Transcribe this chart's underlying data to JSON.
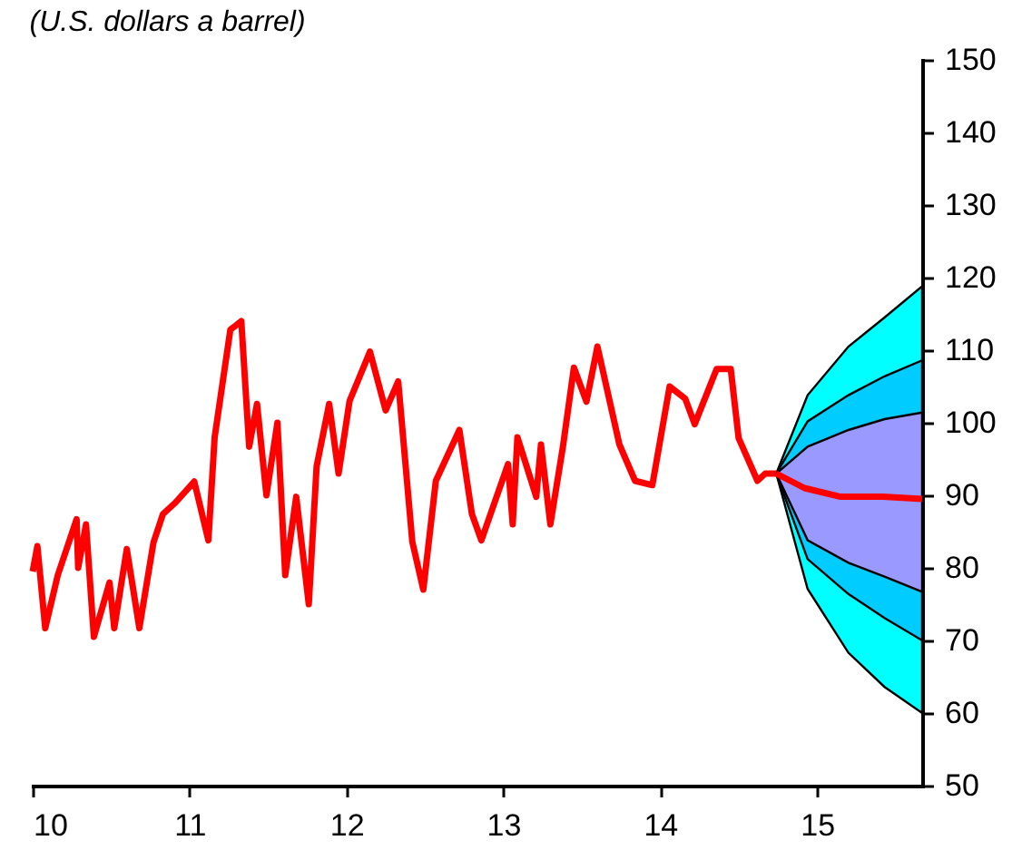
{
  "chart_data": {
    "type": "line",
    "title": "(U.S. dollars a barrel)",
    "xlim": [
      2010,
      2015.67
    ],
    "xticks": [
      {
        "value": 2010,
        "label": "10"
      },
      {
        "value": 2011,
        "label": "11"
      },
      {
        "value": 2012,
        "label": "12"
      },
      {
        "value": 2013,
        "label": "13"
      },
      {
        "value": 2014,
        "label": "14"
      },
      {
        "value": 2015,
        "label": "15"
      }
    ],
    "ylim": [
      50,
      150
    ],
    "yticks": [
      50,
      60,
      70,
      80,
      90,
      100,
      110,
      120,
      130,
      140,
      150
    ],
    "grid": false,
    "series": [
      {
        "type": "area",
        "color": "#00ffff",
        "x": [
          2014.74,
          2014.94,
          2015.2,
          2015.43,
          2015.67
        ],
        "values": [
          null,
          null,
          null,
          null,
          null
        ],
        "lower": [
          93,
          77.1,
          68.3,
          63.6,
          60
        ],
        "upper": [
          93,
          103.8,
          110.5,
          114.5,
          118.8
        ]
      },
      {
        "type": "area",
        "color": "#00ccff",
        "x": [
          2014.74,
          2014.94,
          2015.2,
          2015.43,
          2015.67
        ],
        "values": [
          null,
          null,
          null,
          null,
          null
        ],
        "lower": [
          93,
          81.2,
          76.4,
          73.1,
          70
        ],
        "upper": [
          93,
          100.2,
          103.8,
          106.4,
          108.6
        ]
      },
      {
        "type": "area",
        "color": "#9999ff",
        "x": [
          2014.74,
          2014.94,
          2015.2,
          2015.43,
          2015.67
        ],
        "values": [
          null,
          null,
          null,
          null,
          null
        ],
        "lower": [
          93,
          83.8,
          80.7,
          78.8,
          76.7
        ],
        "upper": [
          93,
          96.7,
          99,
          100.5,
          101.4
        ]
      },
      {
        "color": "#ff0000",
        "x": [
          2010,
          2010.03,
          2010.08,
          2010.16,
          2010.28,
          2010.29,
          2010.34,
          2010.39,
          2010.49,
          2010.52,
          2010.6,
          2010.68,
          2010.77,
          2010.83,
          2010.91,
          2011.03,
          2011.12,
          2011.16,
          2011.26,
          2011.33,
          2011.38,
          2011.43,
          2011.49,
          2011.56,
          2011.61,
          2011.68,
          2011.76,
          2011.81,
          2011.89,
          2011.95,
          2012.02,
          2012.15,
          2012.25,
          2012.33,
          2012.42,
          2012.49,
          2012.57,
          2012.72,
          2012.8,
          2012.86,
          2013.03,
          2013.06,
          2013.09,
          2013.21,
          2013.24,
          2013.3,
          2013.38,
          2013.45,
          2013.53,
          2013.6,
          2013.74,
          2013.84,
          2013.95,
          2014.06,
          2014.16,
          2014.22,
          2014.36,
          2014.45,
          2014.5,
          2014.62,
          2014.67,
          2014.71,
          2014.74
        ],
        "values": [
          79.5,
          83,
          71.7,
          79,
          86.7,
          80,
          86,
          70.5,
          78,
          71.7,
          82.6,
          71.7,
          83.5,
          87.4,
          89,
          91.9,
          83.8,
          98,
          112.8,
          114,
          96.7,
          102.6,
          90,
          100,
          79,
          89.8,
          75,
          94,
          102.6,
          93,
          103,
          109.8,
          101.7,
          105.7,
          83.6,
          77,
          92,
          99,
          87.4,
          83.8,
          94.3,
          86,
          98,
          89.8,
          97,
          86,
          96.7,
          107.6,
          102.9,
          110.5,
          97,
          92,
          91.4,
          105,
          103.3,
          99.8,
          107.4,
          107.4,
          97.9,
          92,
          93,
          93,
          93
        ]
      },
      {
        "color": "#ff0000",
        "x": [
          2014.74,
          2014.92,
          2015.15,
          2015.42,
          2015.67
        ],
        "values": [
          93,
          91,
          89.8,
          89.8,
          89.5
        ]
      }
    ]
  }
}
